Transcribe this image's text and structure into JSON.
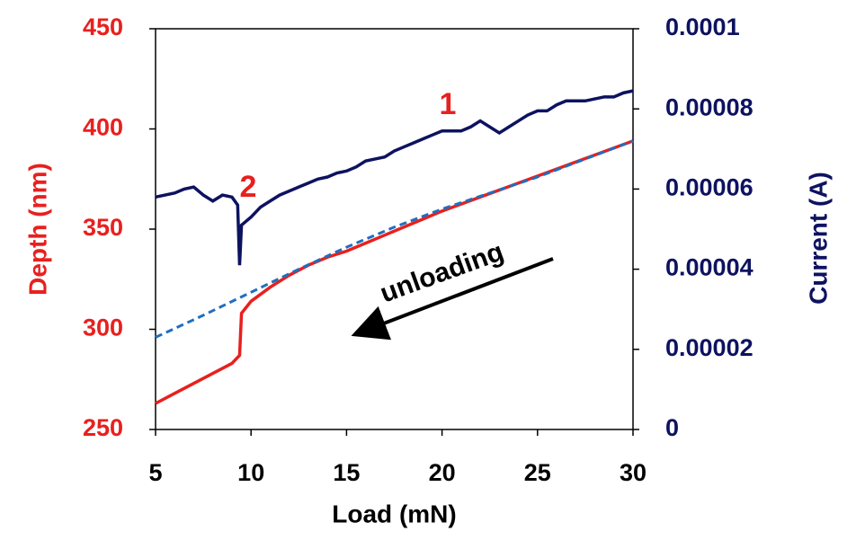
{
  "chart_data": {
    "type": "line",
    "xlabel": "Load (mN)",
    "ylabel": "Depth (nm)",
    "y2label": "Current (A)",
    "xlim": [
      5,
      30
    ],
    "xticks": [
      5,
      10,
      15,
      20,
      25,
      30
    ],
    "ylim": [
      250,
      450
    ],
    "yticks": [
      250,
      300,
      350,
      400,
      450
    ],
    "y2lim": [
      0,
      0.0001
    ],
    "y2ticks": [
      0,
      2e-05,
      4e-05,
      6e-05,
      8e-05,
      0.0001
    ],
    "ycolor": "#e8201e",
    "y2color": "#0d1260",
    "series": [
      {
        "color": "#0d1260",
        "axis": "y2",
        "style": "solid",
        "x": [
          5,
          5.5,
          6,
          6.5,
          7,
          7.5,
          8,
          8.5,
          9,
          9.3,
          9.4,
          9.5,
          10,
          10.5,
          11,
          11.5,
          12,
          12.5,
          13,
          13.5,
          14,
          14.5,
          15,
          15.5,
          16,
          16.5,
          17,
          17.5,
          18,
          18.5,
          19,
          19.5,
          20,
          20.5,
          21,
          21.5,
          22,
          22.5,
          23,
          23.5,
          24,
          24.5,
          25,
          25.5,
          26,
          26.5,
          27,
          27.5,
          28,
          28.5,
          29,
          29.5,
          30
        ],
        "values": [
          5.8e-05,
          5.85e-05,
          5.9e-05,
          6e-05,
          6.05e-05,
          5.85e-05,
          5.7e-05,
          5.85e-05,
          5.8e-05,
          5.6e-05,
          4.1e-05,
          5.1e-05,
          5.3e-05,
          5.55e-05,
          5.7e-05,
          5.85e-05,
          5.95e-05,
          6.05e-05,
          6.15e-05,
          6.25e-05,
          6.3e-05,
          6.4e-05,
          6.45e-05,
          6.55e-05,
          6.7e-05,
          6.75e-05,
          6.8e-05,
          6.95e-05,
          7.05e-05,
          7.15e-05,
          7.25e-05,
          7.35e-05,
          7.45e-05,
          7.45e-05,
          7.45e-05,
          7.55e-05,
          7.7e-05,
          7.55e-05,
          7.4e-05,
          7.55e-05,
          7.7e-05,
          7.85e-05,
          7.95e-05,
          7.95e-05,
          8.1e-05,
          8.2e-05,
          8.2e-05,
          8.2e-05,
          8.25e-05,
          8.3e-05,
          8.3e-05,
          8.4e-05,
          8.45e-05
        ]
      },
      {
        "color": "#e8201e",
        "axis": "y",
        "style": "solid",
        "x": [
          5,
          6,
          7,
          8,
          9,
          9.4,
          9.5,
          10,
          11,
          12,
          13,
          14,
          15,
          16,
          17,
          18,
          19,
          20,
          22,
          24,
          26,
          28,
          30
        ],
        "values": [
          263,
          268,
          273,
          278,
          283,
          287,
          308,
          314,
          321,
          327,
          332,
          336,
          339,
          343,
          347,
          351,
          355,
          359,
          366,
          373,
          380,
          387,
          394
        ]
      },
      {
        "color": "#1f6fbf",
        "axis": "y",
        "style": "dashed",
        "x": [
          5,
          7.5,
          10,
          12.5,
          15,
          17.5,
          20,
          22.5,
          25,
          27.5,
          30
        ],
        "values": [
          296,
          307,
          318.5,
          330,
          341,
          351,
          360,
          368,
          376,
          385,
          394
        ]
      }
    ],
    "annotations": [
      {
        "text": "1",
        "color": "#e8201e"
      },
      {
        "text": "2",
        "color": "#e8201e"
      },
      {
        "text": "unloading",
        "color": "#000000"
      }
    ]
  }
}
